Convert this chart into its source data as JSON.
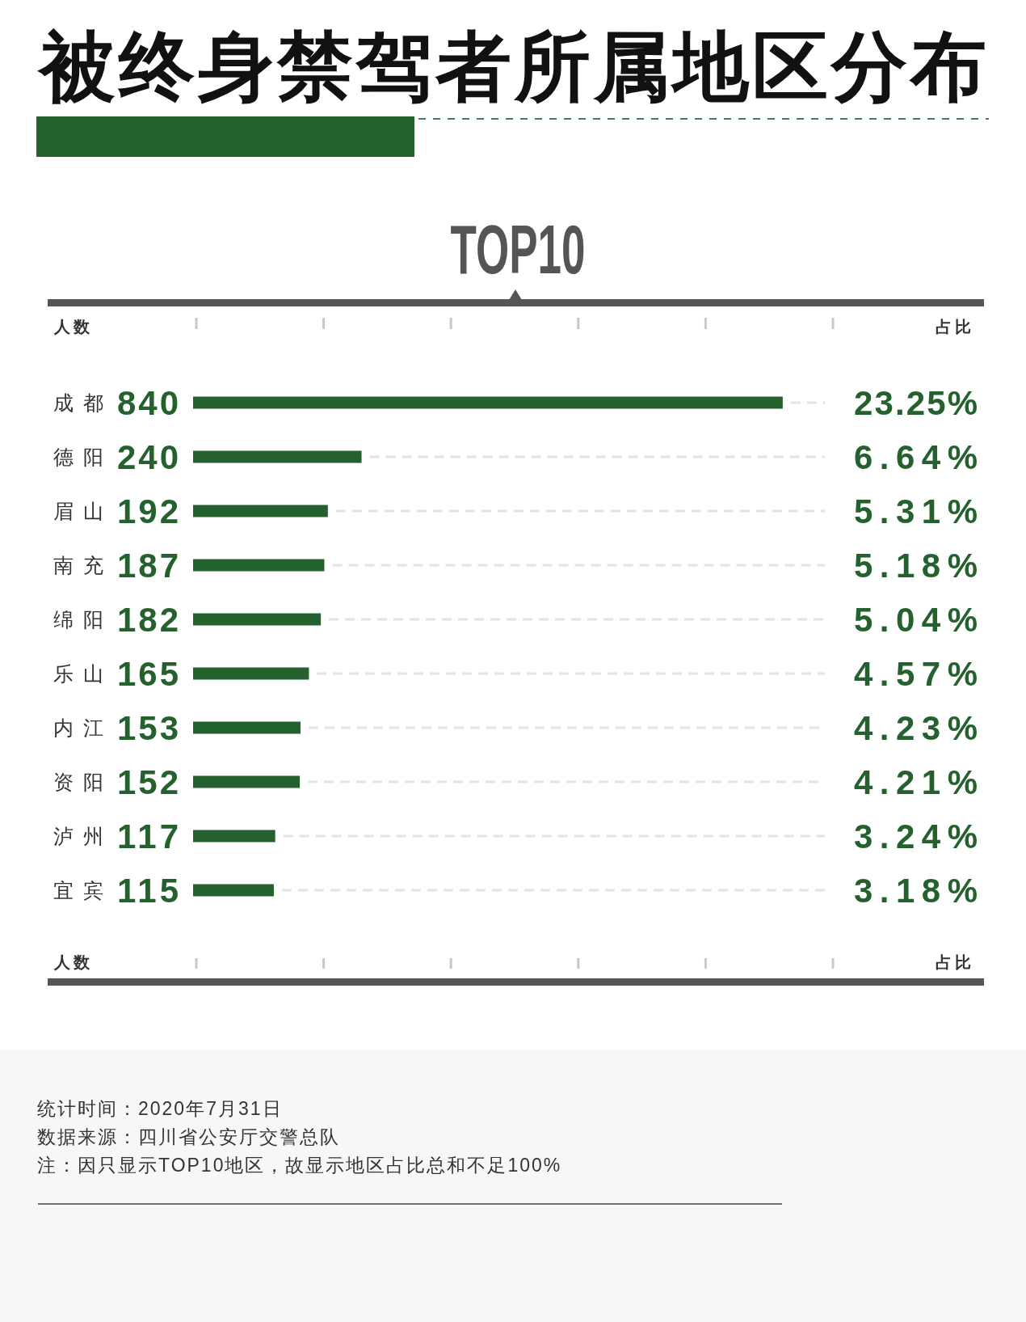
{
  "chart_data": {
    "type": "bar",
    "orientation": "horizontal",
    "title": "被终身禁驾者所属地区分布",
    "subtitle": "TOP10",
    "xlabel": "人数",
    "x2label": "人数",
    "categories": [
      "成都",
      "德阳",
      "眉山",
      "南充",
      "绵阳",
      "乐山",
      "内江",
      "资阳",
      "泸州",
      "宜宾"
    ],
    "values": [
      840,
      240,
      192,
      187,
      182,
      165,
      153,
      152,
      117,
      115
    ],
    "color": "#24612e",
    "data_labels": true,
    "xlim": [
      0,
      900
    ],
    "tick_labels": "y",
    "grid": "y",
    "annotations": [
      "占比",
      "23.25%",
      "6.64%",
      "5.31%",
      "5.18%",
      "5.04%",
      "4.57%",
      "4.23%",
      "4.21%",
      "3.24%",
      "3.18%",
      "占比",
      "统计时间：2020年7月31日",
      "数据来源：四川省公安厅交警总队",
      "注：因只显示TOP10地区，故显示地区占比总和不足100%"
    ]
  }
}
